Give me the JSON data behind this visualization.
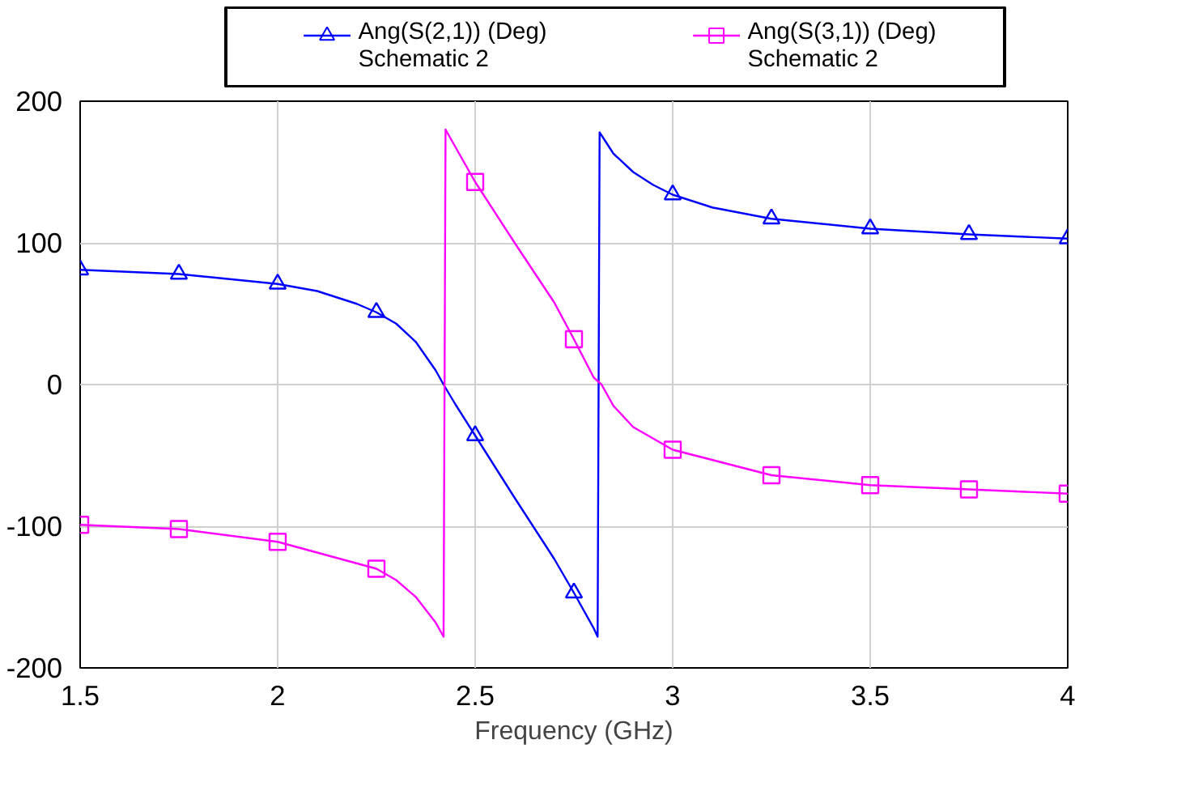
{
  "chart_data": {
    "type": "line",
    "xlabel": "Frequency (GHz)",
    "xlim": [
      1.5,
      4
    ],
    "xticks": [
      1.5,
      2,
      2.5,
      3,
      3.5,
      4
    ],
    "ylim": [
      -200,
      200
    ],
    "yticks": [
      -200,
      -100,
      0,
      100,
      200
    ],
    "grid": true,
    "legend": "top",
    "series": [
      {
        "marker": "none",
        "color": "#0000ff",
        "x": [
          1.5,
          1.75,
          2.0,
          2.1,
          2.2,
          2.25,
          2.3,
          2.35,
          2.4,
          2.42,
          2.45,
          2.5,
          2.6,
          2.7,
          2.75,
          2.8,
          2.81,
          2.815,
          2.85,
          2.9,
          2.95,
          3.0,
          3.1,
          3.25,
          3.5,
          3.75,
          4.0
        ],
        "values": [
          81,
          78,
          71,
          66,
          57,
          51,
          43,
          30,
          10,
          0,
          -14,
          -36,
          -80,
          -123,
          -147,
          -172,
          -178,
          178,
          163,
          150,
          141,
          134,
          125,
          117,
          110,
          106,
          103
        ]
      },
      {
        "type": "scatter",
        "name": "Ang(S(2,1)) (Deg)\nSchematic 2",
        "marker": "triangle",
        "color": "#0000ff",
        "x": [
          1.5,
          1.75,
          2.0,
          2.25,
          2.5,
          2.75,
          3.0,
          3.25,
          3.5,
          3.75,
          4.0
        ],
        "values": [
          81,
          78,
          71,
          51,
          -36,
          -147,
          134,
          117,
          110,
          106,
          103
        ]
      },
      {
        "marker": "none",
        "color": "#ff00ff",
        "x": [
          1.5,
          1.75,
          2.0,
          2.25,
          2.3,
          2.35,
          2.4,
          2.42,
          2.425,
          2.5,
          2.6,
          2.7,
          2.75,
          2.8,
          2.82,
          2.85,
          2.9,
          3.0,
          3.25,
          3.5,
          3.75,
          4.0
        ],
        "values": [
          -99,
          -102,
          -111,
          -130,
          -138,
          -150,
          -168,
          -178,
          180,
          143,
          100,
          58,
          32,
          5,
          0,
          -15,
          -30,
          -46,
          -64,
          -71,
          -74,
          -77
        ]
      },
      {
        "type": "scatter",
        "name": "Ang(S(3,1)) (Deg)\nSchematic 2",
        "marker": "square",
        "color": "#ff00ff",
        "x": [
          1.5,
          1.75,
          2.0,
          2.25,
          2.5,
          2.75,
          3.0,
          3.25,
          3.5,
          3.75,
          4.0
        ],
        "values": [
          -99,
          -102,
          -111,
          -130,
          143,
          32,
          -46,
          -64,
          -71,
          -74,
          -77
        ]
      }
    ]
  }
}
